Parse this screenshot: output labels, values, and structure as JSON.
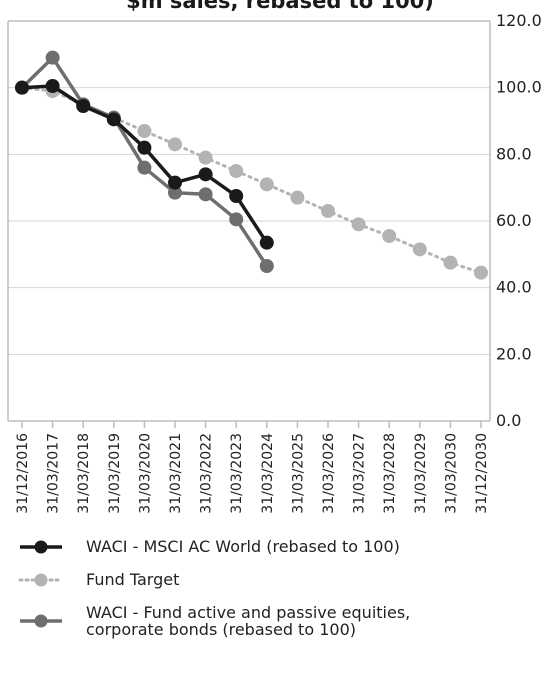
{
  "chart_data": {
    "type": "line",
    "title": "$m sales, rebased to 100)",
    "categories": [
      "31/12/2016",
      "31/03/2017",
      "31/03/2018",
      "31/03/2019",
      "31/03/2020",
      "31/03/2021",
      "31/03/2022",
      "31/03/2023",
      "31/03/2024",
      "31/03/2025",
      "31/03/2026",
      "31/03/2027",
      "31/03/2028",
      "31/03/2029",
      "31/03/2030",
      "31/12/2030"
    ],
    "ylim": [
      0,
      120
    ],
    "yticks": [
      "0.0",
      "20.0",
      "40.0",
      "60.0",
      "80.0",
      "100.0",
      "120.0"
    ],
    "grid": true,
    "legend_position": "bottom",
    "series": [
      {
        "name": "WACI - MSCI AC World (rebased to 100)",
        "color": "#1a1a1a",
        "style": "solid",
        "values": [
          100,
          100.5,
          94.5,
          90.5,
          82,
          71.5,
          74,
          67.5,
          53.5,
          null,
          null,
          null,
          null,
          null,
          null,
          null
        ]
      },
      {
        "name": "Fund Target",
        "color": "#b3b3b3",
        "style": "dotted",
        "values": [
          100,
          99,
          95,
          91,
          87,
          83,
          79,
          75,
          71,
          67,
          63,
          59,
          55.5,
          51.5,
          47.5,
          44.5
        ]
      },
      {
        "name": "WACI - Fund active and passive equities,\ncorporate bonds (rebased to 100)",
        "color": "#6e6e6e",
        "style": "solid",
        "values": [
          100,
          109,
          95,
          91,
          76,
          68.5,
          68,
          60.5,
          46.5,
          null,
          null,
          null,
          null,
          null,
          null,
          null
        ]
      }
    ]
  }
}
